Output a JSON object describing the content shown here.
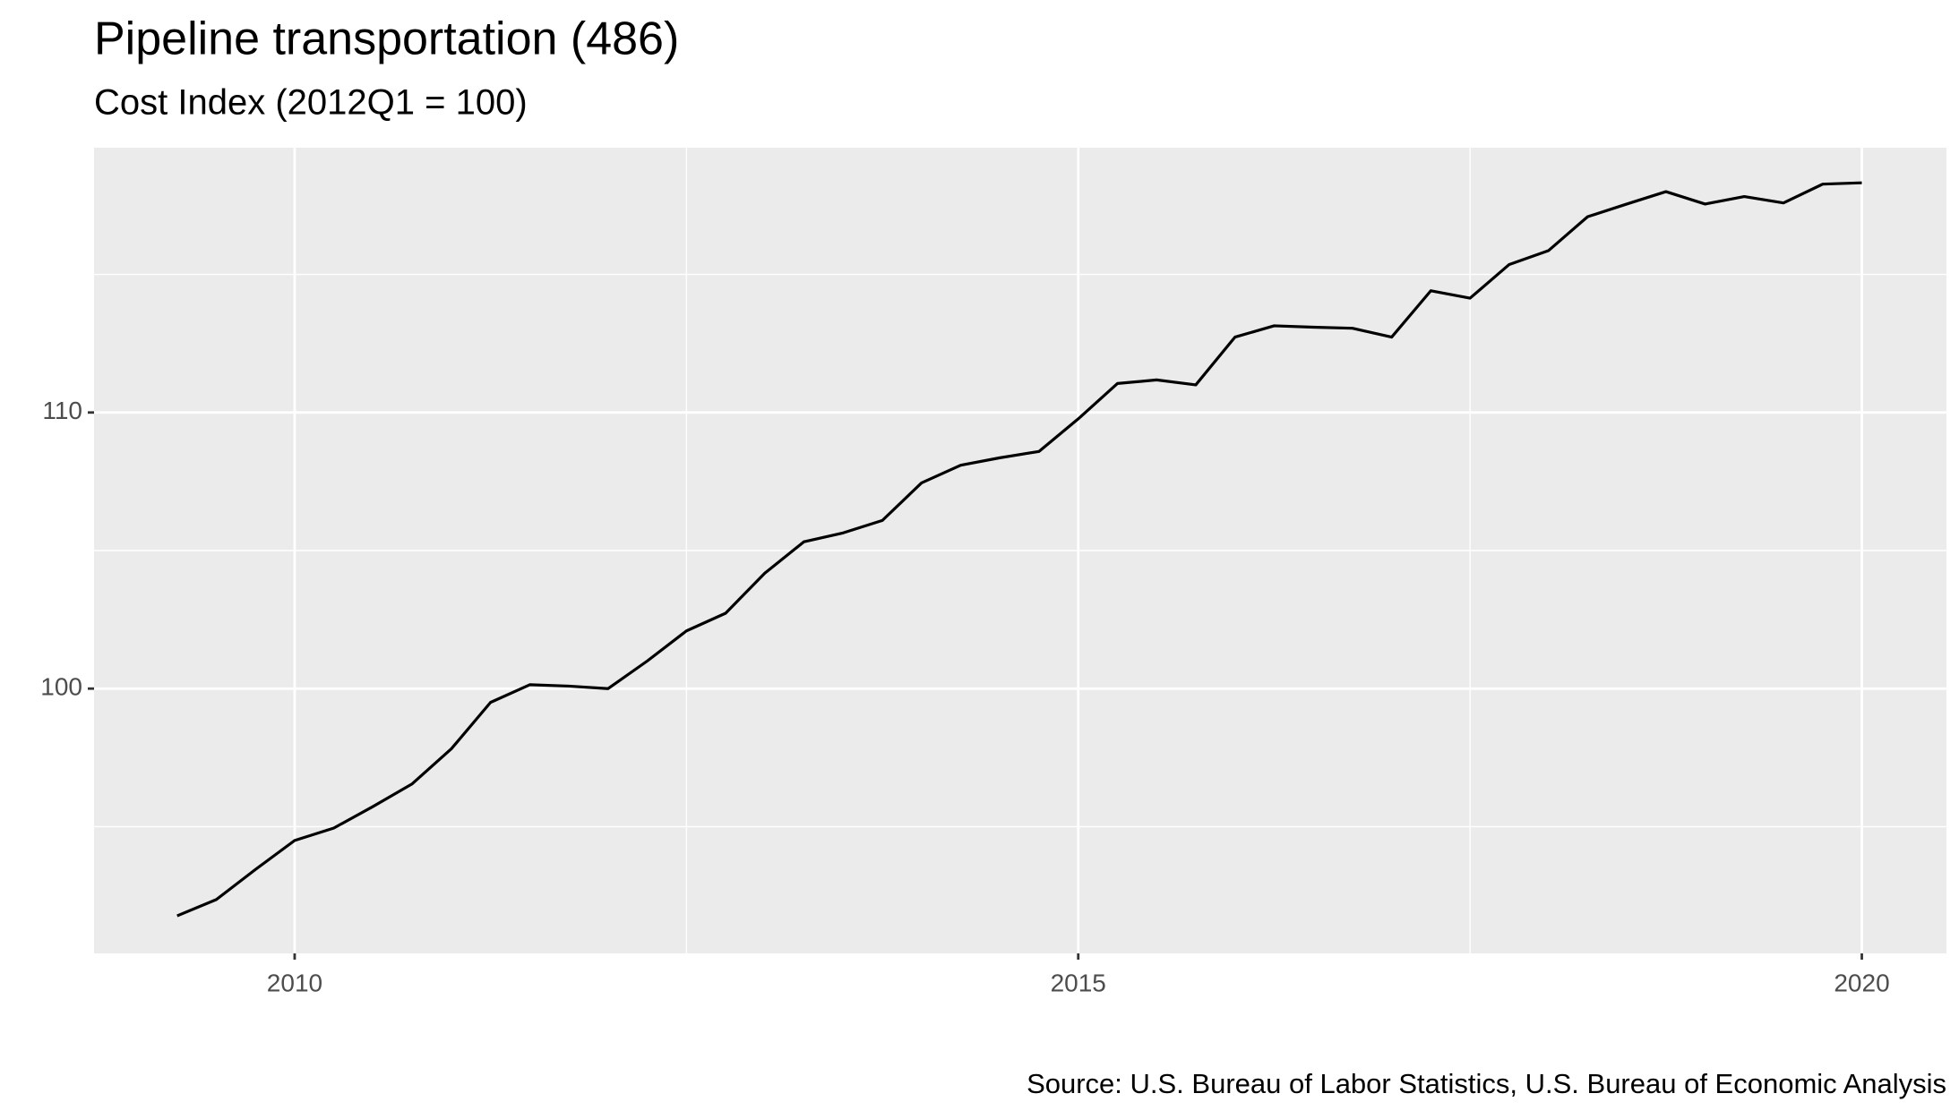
{
  "chart_data": {
    "type": "line",
    "title": "Pipeline transportation (486)",
    "subtitle": "Cost Index (2012Q1 = 100)",
    "caption": "Source: U.S. Bureau of Labor Statistics, U.S. Bureau of Economic Analysis",
    "x": [
      2009.25,
      2009.5,
      2009.75,
      2010.0,
      2010.25,
      2010.5,
      2010.75,
      2011.0,
      2011.25,
      2011.5,
      2011.75,
      2012.0,
      2012.25,
      2012.5,
      2012.75,
      2013.0,
      2013.25,
      2013.5,
      2013.75,
      2014.0,
      2014.25,
      2014.5,
      2014.75,
      2015.0,
      2015.25,
      2015.5,
      2015.75,
      2016.0,
      2016.25,
      2016.5,
      2016.75,
      2017.0,
      2017.25,
      2017.5,
      2017.75,
      2018.0,
      2018.25,
      2018.5,
      2018.75,
      2019.0,
      2019.25,
      2019.5,
      2019.75,
      2020.0
    ],
    "values": [
      91.77,
      92.36,
      93.45,
      94.5,
      94.95,
      95.73,
      96.55,
      97.82,
      99.5,
      100.14,
      100.09,
      100.0,
      101.0,
      102.09,
      102.73,
      104.18,
      105.32,
      105.64,
      106.09,
      107.45,
      108.09,
      108.36,
      108.59,
      109.77,
      111.05,
      111.18,
      111.0,
      112.73,
      113.14,
      113.09,
      113.05,
      112.73,
      114.41,
      114.14,
      115.36,
      115.86,
      117.09,
      117.55,
      118.0,
      117.55,
      117.82,
      117.59,
      118.27,
      118.32
    ],
    "color": "#000000",
    "xlim": [
      2008.72,
      2020.54
    ],
    "ylim": [
      90.41,
      119.59
    ],
    "xticks": [
      2010,
      2015,
      2020
    ],
    "yticks": [
      100,
      110
    ],
    "xminor": [
      2012.5,
      2017.5
    ],
    "yminor": [
      95,
      105,
      115
    ],
    "grid": true
  }
}
